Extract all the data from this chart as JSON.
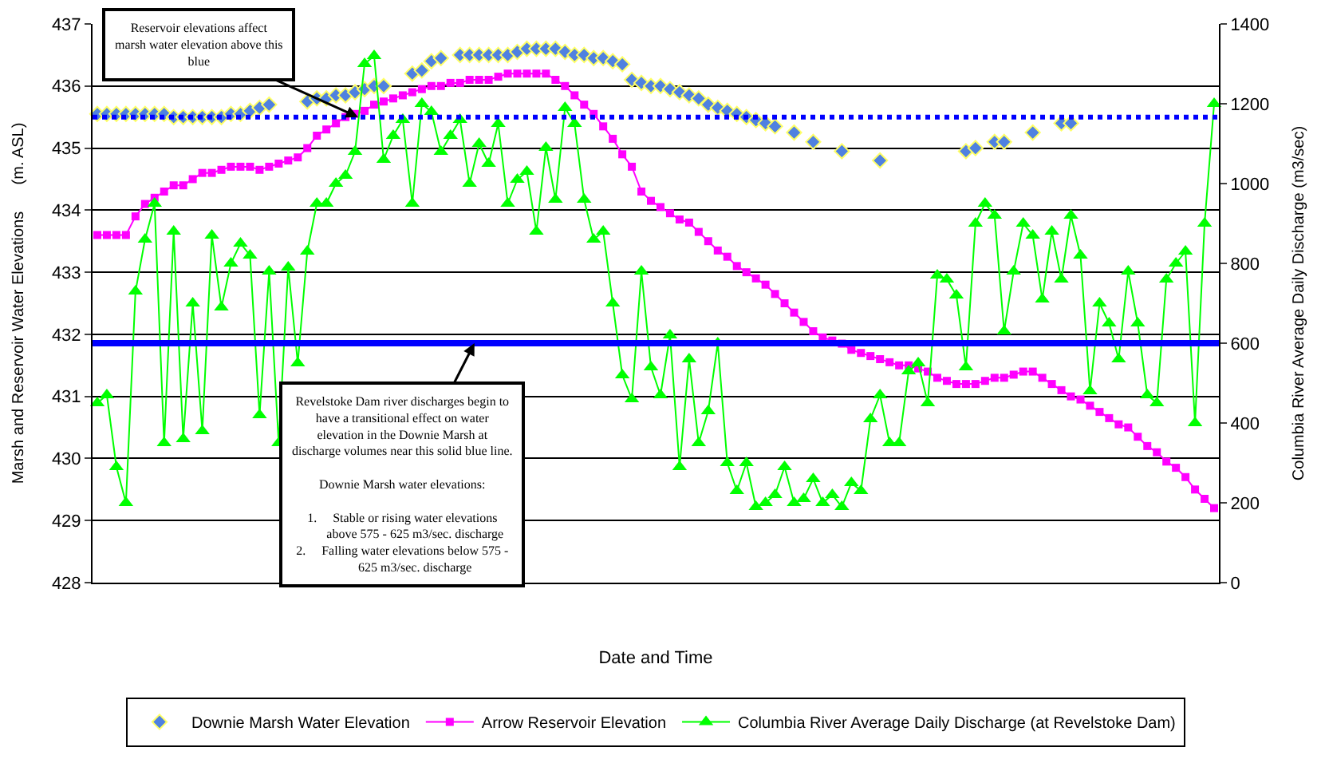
{
  "chart_data": {
    "type": "line",
    "xlabel": "Date and Time",
    "ylabel": "Marsh and Reservoir Water Elevations      (m. ASL)",
    "y2label": "Columbia River Average Daily Discharge (m3/sec)",
    "categories": [
      null,
      null,
      null,
      null,
      null,
      null,
      null,
      null,
      null,
      null,
      null,
      null,
      null,
      null,
      null,
      null,
      null,
      null,
      null,
      null,
      null,
      null,
      null,
      null,
      null,
      null,
      null,
      null,
      null,
      null,
      null,
      null,
      null,
      null,
      null,
      null,
      null,
      null,
      null,
      null,
      null,
      null,
      null,
      null,
      null,
      null,
      null,
      null,
      null,
      null,
      null,
      null,
      null,
      null,
      null,
      null,
      null,
      null,
      null,
      null,
      null,
      null,
      null,
      null,
      null,
      null,
      null,
      null,
      null,
      null,
      null,
      null,
      null,
      null,
      null,
      null,
      null,
      null,
      null,
      null,
      null,
      null,
      null,
      null,
      null,
      null,
      null,
      null,
      null,
      null,
      null,
      null,
      null,
      null,
      null,
      null,
      null,
      null,
      null,
      null,
      null,
      null,
      null,
      null,
      null,
      null,
      null,
      null,
      null,
      null,
      null,
      null,
      null,
      null,
      null,
      null,
      null,
      null
    ],
    "series": [
      {
        "name": "Downie Marsh Water Elevation",
        "type": "scatter",
        "marker": "diamond",
        "color": "#4f81e0",
        "values": [
          435.55,
          435.55,
          435.55,
          435.55,
          435.55,
          435.55,
          435.55,
          435.55,
          435.5,
          435.5,
          435.5,
          435.5,
          435.5,
          435.5,
          435.55,
          435.55,
          435.6,
          435.65,
          435.7,
          null,
          null,
          null,
          435.75,
          435.8,
          435.8,
          435.85,
          435.85,
          435.9,
          435.95,
          436.0,
          436.0,
          null,
          null,
          436.2,
          436.25,
          436.4,
          436.45,
          null,
          436.5,
          436.5,
          436.5,
          436.5,
          436.5,
          436.5,
          436.55,
          436.6,
          436.6,
          436.6,
          436.6,
          436.55,
          436.5,
          436.5,
          436.45,
          436.45,
          436.4,
          436.35,
          436.1,
          436.05,
          436.0,
          436.0,
          435.95,
          435.9,
          435.85,
          435.8,
          435.7,
          435.65,
          435.6,
          435.55,
          435.5,
          435.45,
          435.4,
          435.35,
          null,
          435.25,
          null,
          435.1,
          null,
          null,
          434.95,
          null,
          null,
          null,
          434.8,
          null,
          null,
          null,
          null,
          null,
          null,
          null,
          null,
          434.95,
          435.0,
          null,
          435.1,
          435.1,
          null,
          null,
          435.25,
          null,
          null,
          435.4,
          435.4,
          null,
          null,
          null,
          null,
          null,
          null,
          null,
          null,
          null,
          null,
          null,
          null,
          null,
          null,
          null
        ]
      },
      {
        "name": "Arrow Reservoir Elevation",
        "marker": "square",
        "color": "#ff00ff",
        "values": [
          433.6,
          433.6,
          433.6,
          433.6,
          433.9,
          434.1,
          434.2,
          434.3,
          434.4,
          434.4,
          434.5,
          434.6,
          434.6,
          434.65,
          434.7,
          434.7,
          434.7,
          434.65,
          434.7,
          434.75,
          434.8,
          434.85,
          435.0,
          435.2,
          435.3,
          435.4,
          435.5,
          435.55,
          435.6,
          435.7,
          435.75,
          435.8,
          435.85,
          435.9,
          435.95,
          436.0,
          436.0,
          436.05,
          436.05,
          436.1,
          436.1,
          436.1,
          436.15,
          436.2,
          436.2,
          436.2,
          436.2,
          436.2,
          436.1,
          436.0,
          435.85,
          435.7,
          435.55,
          435.35,
          435.15,
          434.9,
          434.7,
          434.3,
          434.15,
          434.05,
          433.95,
          433.85,
          433.8,
          433.65,
          433.5,
          433.35,
          433.25,
          433.1,
          433.0,
          432.9,
          432.8,
          432.65,
          432.5,
          432.35,
          432.2,
          432.05,
          431.95,
          431.9,
          431.85,
          431.75,
          431.7,
          431.65,
          431.6,
          431.55,
          431.5,
          431.5,
          431.45,
          431.4,
          431.3,
          431.25,
          431.2,
          431.2,
          431.2,
          431.25,
          431.3,
          431.3,
          431.35,
          431.4,
          431.4,
          431.3,
          431.2,
          431.1,
          431.0,
          430.95,
          430.85,
          430.75,
          430.65,
          430.55,
          430.5,
          430.35,
          430.2,
          430.1,
          429.95,
          429.85,
          429.7,
          429.5,
          429.35,
          429.2
        ]
      },
      {
        "name": "Columbia River Average Daily Discharge (at Revelstoke Dam)",
        "marker": "triangle",
        "axis": "y2",
        "color": "#00ff00",
        "values": [
          450,
          470,
          290,
          200,
          730,
          860,
          950,
          350,
          880,
          360,
          700,
          380,
          870,
          690,
          800,
          850,
          820,
          420,
          780,
          350,
          790,
          550,
          830,
          950,
          950,
          1000,
          1020,
          1080,
          1300,
          1320,
          1060,
          1120,
          1160,
          950,
          1200,
          1180,
          1080,
          1120,
          1160,
          1000,
          1100,
          1050,
          1150,
          950,
          1010,
          1030,
          880,
          1090,
          960,
          1190,
          1150,
          960,
          860,
          880,
          700,
          520,
          460,
          780,
          540,
          470,
          620,
          290,
          560,
          350,
          430,
          600,
          300,
          230,
          300,
          190,
          200,
          220,
          290,
          200,
          210,
          260,
          200,
          220,
          190,
          250,
          230,
          410,
          470,
          350,
          350,
          530,
          550,
          450,
          770,
          760,
          720,
          540,
          900,
          950,
          920,
          630,
          780,
          900,
          870,
          710,
          880,
          760,
          920,
          820,
          480,
          700,
          650,
          560,
          780,
          650,
          470,
          450,
          760,
          800,
          830,
          400,
          900,
          1200
        ]
      }
    ],
    "ylim": [
      428,
      437
    ],
    "yticks": [
      428,
      429,
      430,
      431,
      432,
      433,
      434,
      435,
      436,
      437
    ],
    "y2lim": [
      0,
      1400
    ],
    "y2ticks": [
      0,
      200,
      400,
      600,
      800,
      1000,
      1200,
      1400
    ],
    "ref_lines": [
      {
        "axis": "y",
        "value": 435.5,
        "color": "#0000ff",
        "line_style": "dotted"
      },
      {
        "axis": "y2",
        "value": 600,
        "color": "#0000ff",
        "line_style": "solid"
      }
    ],
    "annotations": [
      "Reservoir elevations affect\nmarsh water elevation above this\nblue",
      "Revelstoke Dam river discharges begin to\nhave a transitional effect on water\nelevation in the Downie Marsh at\ndischarge volumes near this solid blue line.\n\nDownie Marsh water elevations:\n\n1.     Stable or rising water elevations\n        above 575 - 625 m3/sec. discharge\n2.     Falling water elevations below 575 -\n        625 m3/sec. discharge"
    ],
    "grid": "y",
    "legend": "bottom"
  }
}
